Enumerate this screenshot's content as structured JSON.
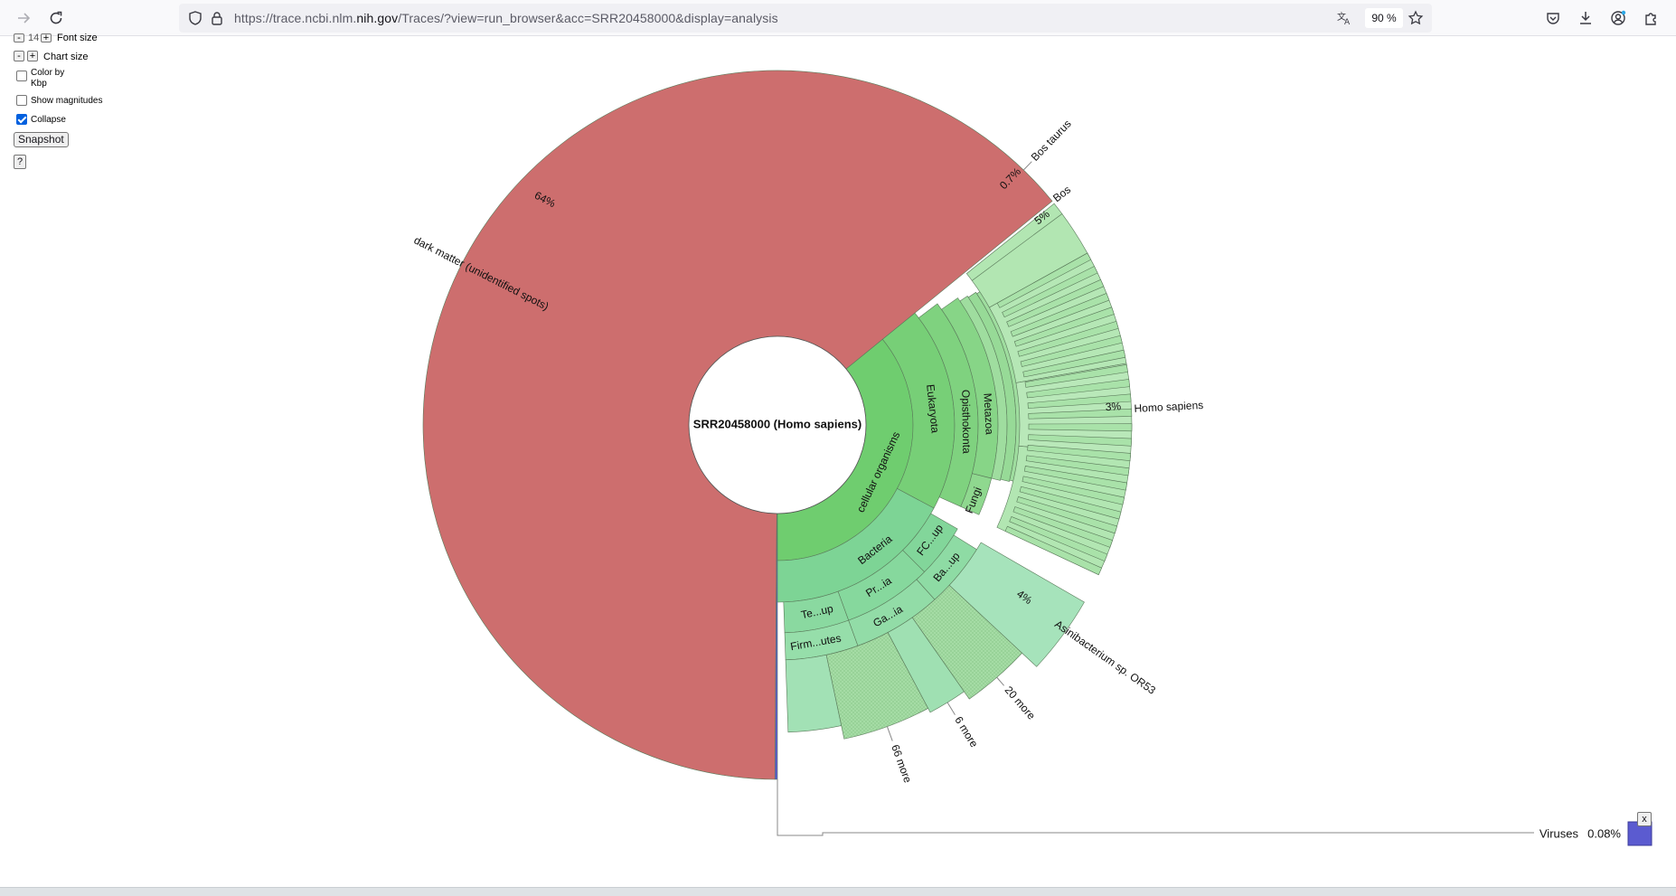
{
  "browser": {
    "url_prefix": "https://trace.ncbi.nlm.",
    "url_domain": "nih.gov",
    "url_suffix": "/Traces/?view=run_browser&acc=SRR20458000&display=analysis",
    "zoom": "90 %",
    "icons": [
      "forward-icon",
      "reload-icon",
      "shield-icon",
      "lock-icon",
      "translate-icon",
      "star-icon",
      "pocket-icon",
      "download-icon",
      "account-icon",
      "extensions-icon"
    ]
  },
  "controls": {
    "font_size_value": "14",
    "font_size_label": "Font size",
    "chart_size_label": "Chart size",
    "minus": "-",
    "plus": "+",
    "color_by_label_1": "Color by",
    "color_by_label_2": "Kbp",
    "show_magnitudes_label": "Show magnitudes",
    "collapse_label": "Collapse",
    "collapse_checked": true,
    "snapshot_label": "Snapshot",
    "help_label": "?"
  },
  "chart_data": {
    "type": "sunburst",
    "center_label": "SRR20458000 (Homo sapiens)",
    "colors": {
      "dark_matter": "#cd6e6e",
      "cellular": "#6fcd6f",
      "bacteria": "#7dd495",
      "eukaryota_light": "#b2e6b2",
      "viruses": "#5b5bd0"
    },
    "root_children": [
      {
        "name": "dark matter (unidentified spots)",
        "percent_label": "64%",
        "value": 64
      },
      {
        "name": "cellular organisms",
        "value": 35.9
      },
      {
        "name": "Viruses",
        "percent_label": "0.08%",
        "value": 0.08
      }
    ],
    "labels": {
      "eukaryota": "Eukaryota",
      "opisthokonta": "Opisthokonta",
      "metazoa": "Metazoa",
      "fungi": "Fungi",
      "bacteria": "Bacteria",
      "fc_group": "FC...up",
      "ba_group": "Ba...up",
      "pr_group": "Pr...ia",
      "te_group": "Te...up",
      "ga_group": "Ga...ia",
      "firmicutes": "Firm...utes",
      "bos_taurus": "Bos taurus",
      "bos_taurus_pct": "0.7%",
      "bos": "Bos",
      "bos_pct": "5%",
      "homo_sapiens": "Homo sapiens",
      "homo_sapiens_pct": "3%",
      "asinibacterium": "Asinibacterium sp. OR53",
      "asinibacterium_pct": "4%",
      "more_20": "20 more",
      "more_6": "6 more",
      "more_66": "66 more"
    },
    "key": {
      "label": "Viruses",
      "percent": "0.08%",
      "close": "x"
    }
  }
}
